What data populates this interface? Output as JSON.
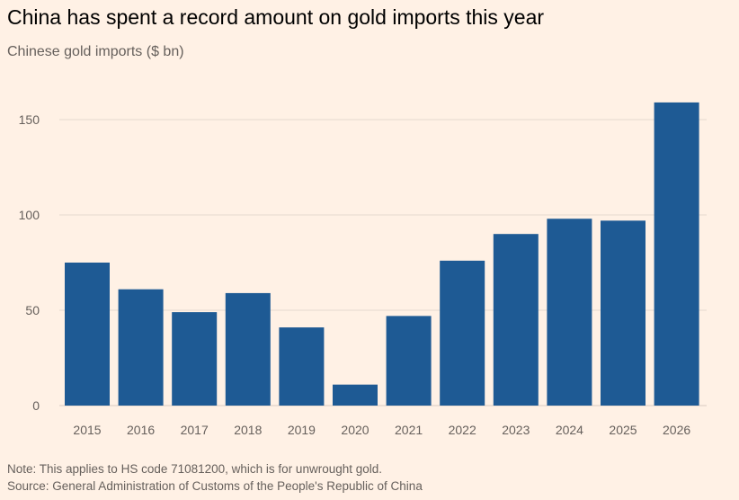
{
  "title": "China has spent a record amount on gold imports this year",
  "subtitle": "Chinese gold imports ($ bn)",
  "note": "Note: This applies to HS code 71081200, which is for unwrought gold.",
  "source": "Source: General Administration of Customs of the People's Republic of China",
  "colors": {
    "bar": "#1e5a94",
    "background": "#fff1e5",
    "grid": "#e6d9ce"
  },
  "chart_data": {
    "type": "bar",
    "title": "China has spent a record amount on gold imports this year",
    "subtitle": "Chinese gold imports ($ bn)",
    "xlabel": "",
    "ylabel": "",
    "categories": [
      "2015",
      "2016",
      "2017",
      "2018",
      "2019",
      "2020",
      "2021",
      "2022",
      "2023",
      "2024",
      "2025",
      "2026"
    ],
    "values": [
      75,
      61,
      49,
      59,
      41,
      11,
      47,
      76,
      90,
      98,
      97,
      159
    ],
    "ylim": [
      0,
      170
    ],
    "yticks": [
      0,
      50,
      100,
      150
    ],
    "grid": true
  }
}
